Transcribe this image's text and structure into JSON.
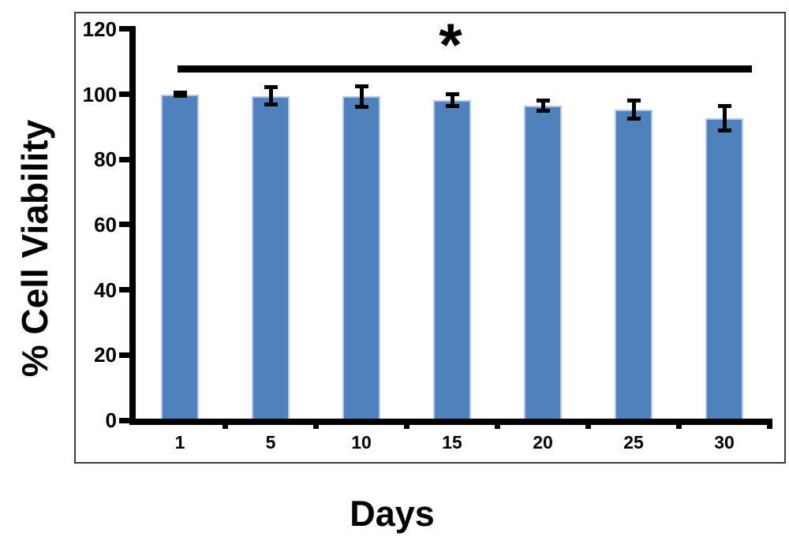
{
  "chart_data": {
    "type": "bar",
    "title": "",
    "xlabel": "Days",
    "ylabel": "% Cell Viability",
    "categories": [
      "1",
      "5",
      "10",
      "15",
      "20",
      "25",
      "30"
    ],
    "series": [
      {
        "name": "% Cell Viability",
        "values": [
          100,
          99.5,
          99.3,
          98.2,
          96.4,
          95.3,
          92.6
        ],
        "errors": [
          0.5,
          2.7,
          3.3,
          2.0,
          1.7,
          2.9,
          3.9
        ]
      }
    ],
    "y_ticks": [
      0,
      20,
      40,
      60,
      80,
      100,
      120
    ],
    "ylim": [
      0,
      120
    ],
    "grid": false,
    "legend_position": "none",
    "annotation": {
      "symbol": "*",
      "description": "significance bar spanning all categories"
    },
    "colors": {
      "bar_fill": "#4F81BD",
      "bar_border": "#B4C9E7",
      "axis": "#000000",
      "text": "#000000",
      "plot_border": "#3d3d3d",
      "background": "#ffffff"
    }
  }
}
